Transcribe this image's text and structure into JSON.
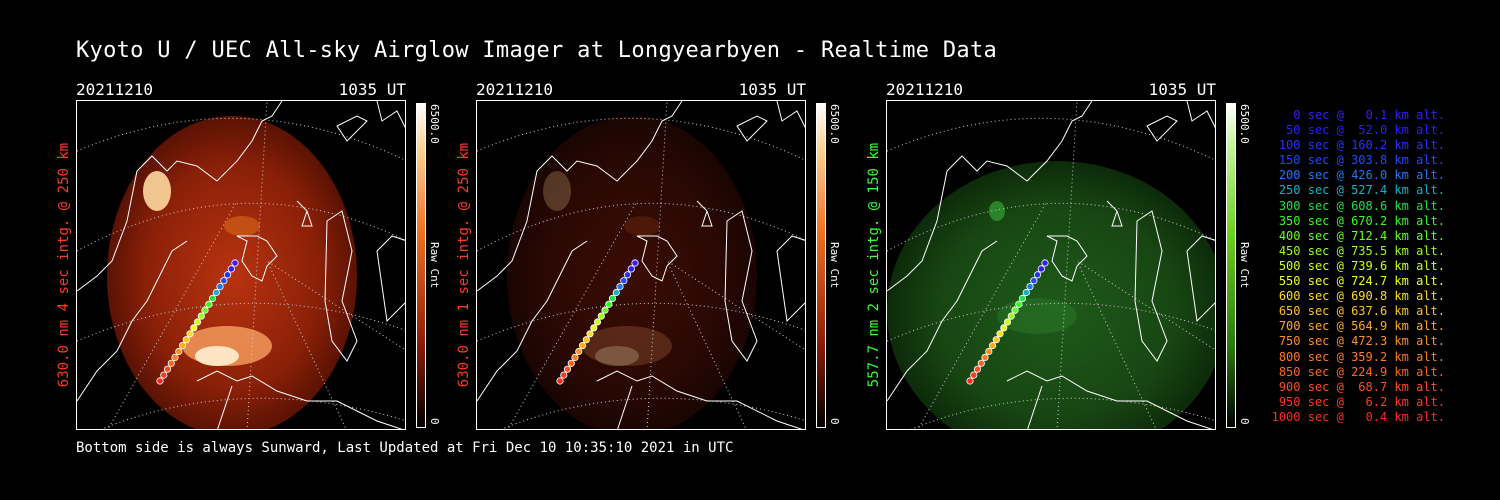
{
  "title": "Kyoto U / UEC All-sky Airglow Imager at Longyearbyen - Realtime Data",
  "footer": "Bottom side is always Sunward, Last Updated at Fri Dec 10 10:35:10 2021 in UTC",
  "panels": [
    {
      "date": "20211210",
      "time": "1035 UT",
      "label": "630.0 nm 4 sec intg. @ 250 km",
      "label_color": "#ff3b1f",
      "colorbar_max": "6500.0",
      "colorbar_min": "0",
      "colorbar_label": "Raw Cnt",
      "theme": "red",
      "intensity": 1.0
    },
    {
      "date": "20211210",
      "time": "1035 UT",
      "label": "630.0 nm 1 sec intg. @ 250 km",
      "label_color": "#ff3b1f",
      "colorbar_max": "6500.0",
      "colorbar_min": "0",
      "colorbar_label": "Raw Cnt",
      "theme": "red",
      "intensity": 0.25
    },
    {
      "date": "20211210",
      "time": "1035 UT",
      "label": "557.7 nm 2 sec intg. @ 150 km",
      "label_color": "#33ff33",
      "colorbar_max": "6500.0",
      "colorbar_min": "0",
      "colorbar_label": "Raw Cnt",
      "theme": "green",
      "intensity": 0.45
    }
  ],
  "legend": [
    {
      "sec": "0",
      "alt": "0.1",
      "color": "#3a1bff"
    },
    {
      "sec": "50",
      "alt": "52.0",
      "color": "#2b1fff"
    },
    {
      "sec": "100",
      "alt": "160.2",
      "color": "#2233ff"
    },
    {
      "sec": "150",
      "alt": "303.8",
      "color": "#1e4bff"
    },
    {
      "sec": "200",
      "alt": "426.0",
      "color": "#1a78ff"
    },
    {
      "sec": "250",
      "alt": "527.4",
      "color": "#15b0c8"
    },
    {
      "sec": "300",
      "alt": "608.6",
      "color": "#1fe04a"
    },
    {
      "sec": "350",
      "alt": "670.2",
      "color": "#33ff1f"
    },
    {
      "sec": "400",
      "alt": "712.4",
      "color": "#66ff1f"
    },
    {
      "sec": "450",
      "alt": "735.5",
      "color": "#99ff1f"
    },
    {
      "sec": "500",
      "alt": "739.6",
      "color": "#ccff1f"
    },
    {
      "sec": "550",
      "alt": "724.7",
      "color": "#f0ff1f"
    },
    {
      "sec": "600",
      "alt": "690.8",
      "color": "#ffdd1f"
    },
    {
      "sec": "650",
      "alt": "637.6",
      "color": "#ffc21f"
    },
    {
      "sec": "700",
      "alt": "564.9",
      "color": "#ffaa1f"
    },
    {
      "sec": "750",
      "alt": "472.3",
      "color": "#ff8f1f"
    },
    {
      "sec": "800",
      "alt": "359.2",
      "color": "#ff7a1f"
    },
    {
      "sec": "850",
      "alt": "224.9",
      "color": "#ff641f"
    },
    {
      "sec": "900",
      "alt": "68.7",
      "color": "#ff4f1f"
    },
    {
      "sec": "950",
      "alt": "6.2",
      "color": "#ff3a1f"
    },
    {
      "sec": "1000",
      "alt": "0.4",
      "color": "#ff2a1f"
    }
  ],
  "legend_sec_unit": "sec @",
  "legend_alt_unit": "km alt."
}
